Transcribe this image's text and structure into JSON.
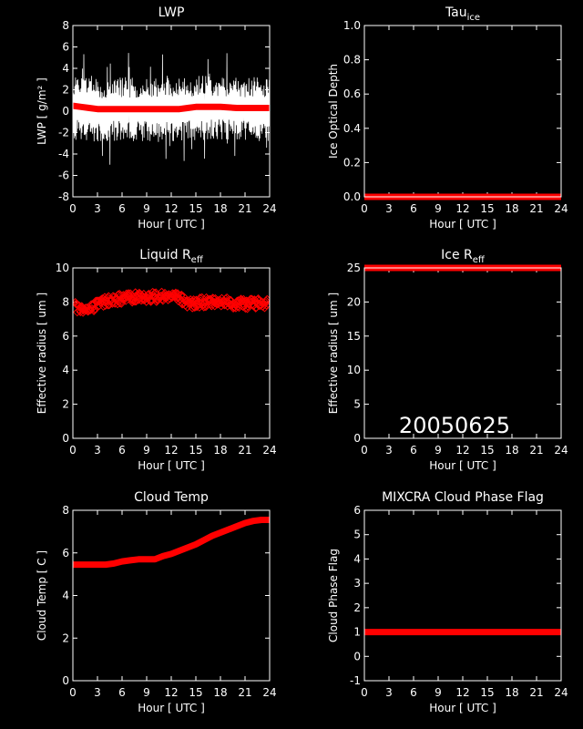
{
  "date_stamp": "20050625",
  "chart_data": [
    {
      "type": "line",
      "title": "LWP",
      "xlabel": "Hour [ UTC ]",
      "ylabel": "LWP [ g/m² ]",
      "xlim": [
        0,
        24
      ],
      "ylim": [
        -8,
        8
      ],
      "xticks": [
        "0",
        "3",
        "6",
        "9",
        "12",
        "15",
        "18",
        "21",
        "24"
      ],
      "yticks": [
        "-8",
        "-6",
        "-4",
        "-2",
        "0",
        "2",
        "4",
        "6",
        "8"
      ],
      "series": [
        {
          "color": "#ffffff",
          "style": "noisy-line",
          "envelope": [
            -3,
            3
          ],
          "x": [
            0,
            2,
            4,
            6,
            8,
            10,
            12,
            14,
            16,
            18,
            20,
            22,
            24
          ],
          "values": [
            0.3,
            0.2,
            0.1,
            0.2,
            0.1,
            0.1,
            0.1,
            0.3,
            0.3,
            0.3,
            0.2,
            0.2,
            0.2
          ]
        },
        {
          "color": "#ff0000",
          "style": "thick",
          "x": [
            0,
            1,
            2,
            3,
            4,
            6,
            8,
            10,
            12,
            13,
            14,
            15,
            16,
            18,
            20,
            22,
            24
          ],
          "values": [
            0.5,
            0.4,
            0.3,
            0.2,
            0.2,
            0.2,
            0.2,
            0.2,
            0.2,
            0.2,
            0.3,
            0.4,
            0.4,
            0.4,
            0.3,
            0.3,
            0.3
          ]
        }
      ]
    },
    {
      "type": "line",
      "title": "Tau",
      "title_sub": "ice",
      "xlabel": "Hour [ UTC ]",
      "ylabel": "Ice Optical Depth",
      "xlim": [
        0,
        24
      ],
      "ylim": [
        0,
        1
      ],
      "xticks": [
        "0",
        "3",
        "6",
        "9",
        "12",
        "15",
        "18",
        "21",
        "24"
      ],
      "yticks": [
        "0.0",
        "0.2",
        "0.4",
        "0.6",
        "0.8",
        "1.0"
      ],
      "series": [
        {
          "color": "#ff0000",
          "style": "thick",
          "x": [
            0,
            24
          ],
          "values": [
            0,
            0
          ]
        }
      ]
    },
    {
      "type": "scatter",
      "title": "Liquid R",
      "title_sub": "eff",
      "xlabel": "Hour [ UTC ]",
      "ylabel": "Effective radius [ um ]",
      "xlim": [
        0,
        24
      ],
      "ylim": [
        0,
        10
      ],
      "xticks": [
        "0",
        "3",
        "6",
        "9",
        "12",
        "15",
        "18",
        "21",
        "24"
      ],
      "yticks": [
        "0",
        "2",
        "4",
        "6",
        "8",
        "10"
      ],
      "series": [
        {
          "color": "#ff0000",
          "style": "diamonds",
          "spread": 0.6,
          "x": [
            0,
            1,
            2,
            3,
            4,
            6,
            8,
            10,
            12,
            13,
            14,
            15,
            16,
            18,
            20,
            22,
            24
          ],
          "values": [
            7.8,
            7.5,
            7.6,
            7.9,
            8.0,
            8.2,
            8.3,
            8.3,
            8.3,
            8.2,
            7.9,
            7.9,
            8.0,
            8.0,
            7.9,
            7.9,
            7.9
          ]
        }
      ]
    },
    {
      "type": "line",
      "title": "Ice R",
      "title_sub": "eff",
      "xlabel": "Hour [ UTC ]",
      "ylabel": "Effective radius [ um ]",
      "xlim": [
        0,
        24
      ],
      "ylim": [
        0,
        25
      ],
      "xticks": [
        "0",
        "3",
        "6",
        "9",
        "12",
        "15",
        "18",
        "21",
        "24"
      ],
      "yticks": [
        "0",
        "5",
        "10",
        "15",
        "20",
        "25"
      ],
      "series": [
        {
          "color": "#ff0000",
          "style": "thick",
          "x": [
            0,
            24
          ],
          "values": [
            25,
            25
          ]
        }
      ]
    },
    {
      "type": "line",
      "title": "Cloud Temp",
      "xlabel": "Hour [ UTC ]",
      "ylabel": "Cloud Temp [ C ]",
      "xlim": [
        0,
        24
      ],
      "ylim": [
        0,
        8
      ],
      "xticks": [
        "0",
        "3",
        "6",
        "9",
        "12",
        "15",
        "18",
        "21",
        "24"
      ],
      "yticks": [
        "0",
        "2",
        "4",
        "6",
        "8"
      ],
      "series": [
        {
          "color": "#ff0000",
          "style": "thick",
          "x": [
            0,
            1,
            2,
            3,
            4,
            5,
            6,
            7,
            8,
            9,
            10,
            11,
            12,
            13,
            14,
            15,
            16,
            17,
            18,
            19,
            20,
            21,
            22,
            23,
            24
          ],
          "values": [
            5.45,
            5.45,
            5.45,
            5.45,
            5.45,
            5.5,
            5.6,
            5.65,
            5.7,
            5.7,
            5.7,
            5.85,
            5.95,
            6.1,
            6.25,
            6.4,
            6.6,
            6.8,
            6.95,
            7.1,
            7.25,
            7.4,
            7.5,
            7.55,
            7.55
          ]
        }
      ]
    },
    {
      "type": "line",
      "title": "MIXCRA Cloud Phase Flag",
      "xlabel": "Hour [ UTC ]",
      "ylabel": "Cloud Phase Flag",
      "xlim": [
        0,
        24
      ],
      "ylim": [
        -1,
        6
      ],
      "xticks": [
        "0",
        "3",
        "6",
        "9",
        "12",
        "15",
        "18",
        "21",
        "24"
      ],
      "yticks": [
        "-1",
        "0",
        "1",
        "2",
        "3",
        "4",
        "5",
        "6"
      ],
      "series": [
        {
          "color": "#ff0000",
          "style": "thick",
          "x": [
            0,
            24
          ],
          "values": [
            1,
            1
          ]
        }
      ]
    }
  ]
}
